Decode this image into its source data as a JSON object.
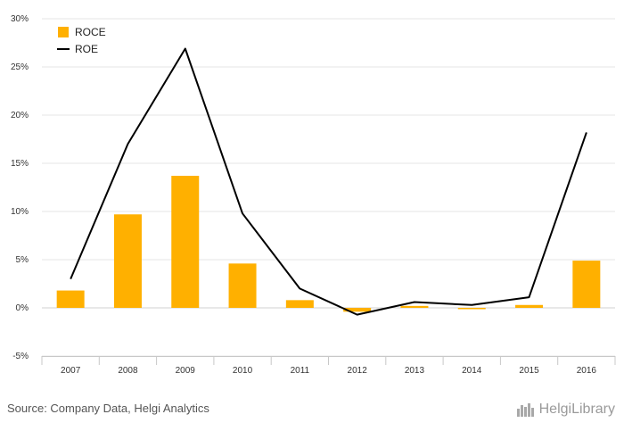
{
  "chart_data": {
    "type": "bar",
    "categories": [
      "2007",
      "2008",
      "2009",
      "2010",
      "2011",
      "2012",
      "2013",
      "2014",
      "2015",
      "2016"
    ],
    "series": [
      {
        "name": "ROCE",
        "type": "bar",
        "color": "#FFB000",
        "values": [
          1.8,
          9.7,
          13.7,
          4.6,
          0.8,
          -0.4,
          0.2,
          -0.1,
          0.3,
          4.9
        ]
      },
      {
        "name": "ROE",
        "type": "line",
        "color": "#000000",
        "values": [
          3.0,
          17.0,
          26.9,
          9.8,
          2.0,
          -0.7,
          0.6,
          0.3,
          1.1,
          18.2
        ]
      }
    ],
    "y_ticks": [
      "30%",
      "25%",
      "20%",
      "15%",
      "10%",
      "5%",
      "0%",
      "-5%"
    ],
    "ylim": [
      -5,
      30
    ],
    "grid": true,
    "legend": "top-left"
  },
  "footer": {
    "source": "Source: Company Data, Helgi Analytics",
    "logo_text": "HelgiLibrary",
    "logo_icon": "helgi-library-logo-icon"
  }
}
